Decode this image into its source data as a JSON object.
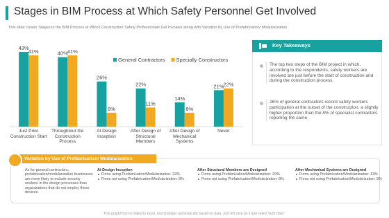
{
  "header": {
    "title": "Stages in BIM Process at Which Safety Personnel Get Involved",
    "subtitle": "This slide covers Stages in the BIM Process at Which Construction Safety Professionals Get Involves  along with Variation by Use of Prefabrication/ Modularization"
  },
  "chart_data": {
    "type": "bar",
    "categories": [
      "Just Prior Construction Start",
      "Throughtout the Construction Process",
      "At Design Inception",
      "After Design of Structural Members",
      "After Design of Mechanical Systems",
      "Never"
    ],
    "series": [
      {
        "name": "General Contractors",
        "color": "#17a1a0",
        "values": [
          43,
          40,
          26,
          22,
          14,
          21
        ],
        "value_labels": [
          "43%",
          "40%",
          "26%",
          "22%",
          "14%",
          "21%"
        ]
      },
      {
        "name": "Specially Constructors",
        "color": "#f2a922",
        "values": [
          41,
          41,
          8,
          11,
          8,
          22
        ],
        "value_labels": [
          "41%",
          "41%",
          "8%",
          "11%",
          "8%",
          "22%"
        ]
      }
    ],
    "ylim": [
      0,
      45
    ]
  },
  "key_takeaways": {
    "title": "Key Takeaways",
    "points": [
      "The top two steps of the BIM project in which, according to the respondents, safety workers are involved are just before the start of construction and during the construction process.",
      "26% of general contractors record safety workers participation at the outset of the construction, a slightly higher proportion than the 8% of specialist contractors reporting the same"
    ]
  },
  "variation": {
    "title": "Variation by Use of Prefabrication/ Modularization",
    "summary": "As for general contractors, prefabrication/modularization businesses are more likely to include security workers in the design processes than organizations that do not employ these devices.",
    "columns": [
      {
        "title": "At Design Inception",
        "items": [
          "Firms using Prefabrication/Modularization: 22%",
          "Firms not using Prefabrication/Modularization: 8%"
        ]
      },
      {
        "title": "After Structural Members are Designed",
        "items": [
          "Firms using Prefabrication/Modularization: 20%",
          "Firms not using Prefabrication/Modularization: 8%"
        ]
      },
      {
        "title": "After Mechanical Systems are Designed",
        "items": [
          "Firms using Prefabrication/Modularization: 13%",
          "Firms not using Prefabrication/Modularization: 8%"
        ]
      }
    ]
  },
  "footer": "This graph/chart is linked to excel, and changes automatically based on data. Just left click on it and select “Edit Data”."
}
